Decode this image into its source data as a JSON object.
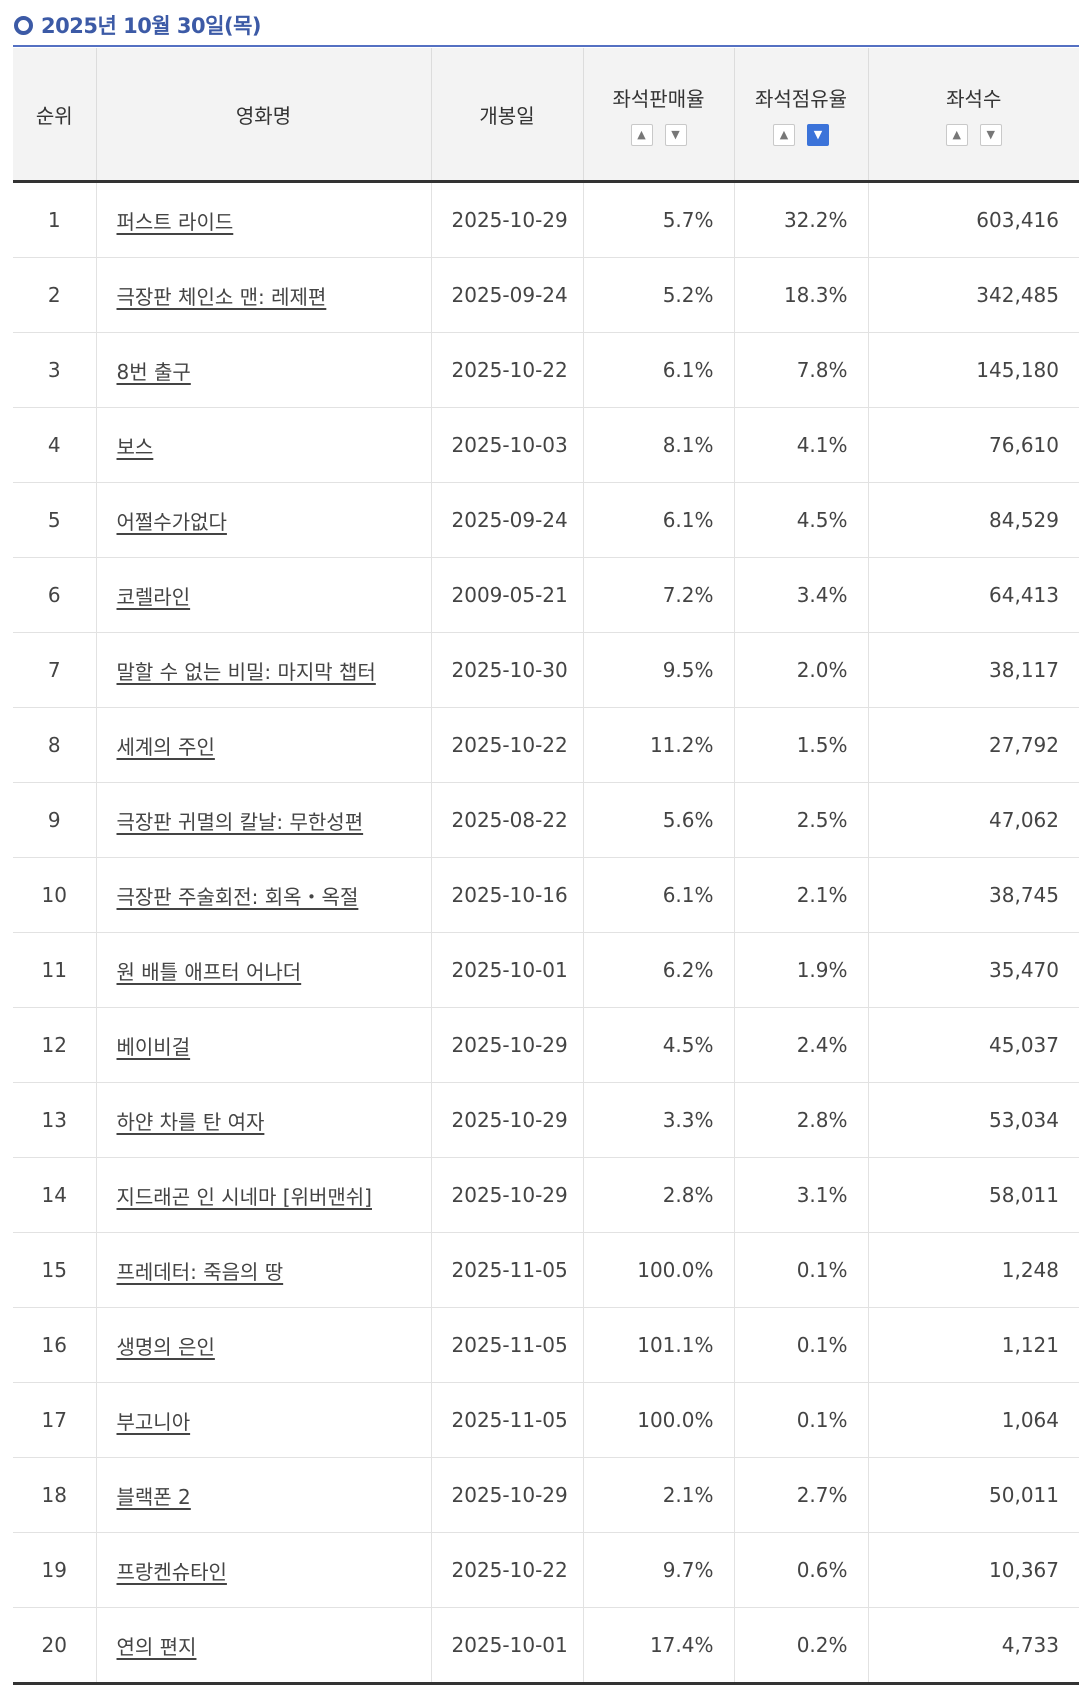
{
  "date_title": "2025년 10월 30일(목)",
  "columns": {
    "rank": "순위",
    "title": "영화명",
    "release": "개봉일",
    "sales_rate": "좌석판매율",
    "share_rate": "좌석점유율",
    "seats": "좌석수"
  },
  "sort": {
    "active_column": "share_rate",
    "active_direction": "desc"
  },
  "rows": [
    {
      "rank": "1",
      "title": "퍼스트 라이드",
      "release": "2025-10-29",
      "sales_rate": "5.7%",
      "share_rate": "32.2%",
      "seats": "603,416"
    },
    {
      "rank": "2",
      "title": "극장판 체인소 맨: 레제편",
      "release": "2025-09-24",
      "sales_rate": "5.2%",
      "share_rate": "18.3%",
      "seats": "342,485"
    },
    {
      "rank": "3",
      "title": "8번 출구",
      "release": "2025-10-22",
      "sales_rate": "6.1%",
      "share_rate": "7.8%",
      "seats": "145,180"
    },
    {
      "rank": "4",
      "title": "보스",
      "release": "2025-10-03",
      "sales_rate": "8.1%",
      "share_rate": "4.1%",
      "seats": "76,610"
    },
    {
      "rank": "5",
      "title": "어쩔수가없다",
      "release": "2025-09-24",
      "sales_rate": "6.1%",
      "share_rate": "4.5%",
      "seats": "84,529"
    },
    {
      "rank": "6",
      "title": "코렐라인",
      "release": "2009-05-21",
      "sales_rate": "7.2%",
      "share_rate": "3.4%",
      "seats": "64,413"
    },
    {
      "rank": "7",
      "title": "말할 수 없는 비밀: 마지막 챕터",
      "release": "2025-10-30",
      "sales_rate": "9.5%",
      "share_rate": "2.0%",
      "seats": "38,117"
    },
    {
      "rank": "8",
      "title": "세계의 주인",
      "release": "2025-10-22",
      "sales_rate": "11.2%",
      "share_rate": "1.5%",
      "seats": "27,792"
    },
    {
      "rank": "9",
      "title": "극장판 귀멸의 칼날: 무한성편",
      "release": "2025-08-22",
      "sales_rate": "5.6%",
      "share_rate": "2.5%",
      "seats": "47,062"
    },
    {
      "rank": "10",
      "title": "극장판 주술회전: 회옥・옥절",
      "release": "2025-10-16",
      "sales_rate": "6.1%",
      "share_rate": "2.1%",
      "seats": "38,745"
    },
    {
      "rank": "11",
      "title": "원 배틀 애프터 어나더",
      "release": "2025-10-01",
      "sales_rate": "6.2%",
      "share_rate": "1.9%",
      "seats": "35,470"
    },
    {
      "rank": "12",
      "title": "베이비걸",
      "release": "2025-10-29",
      "sales_rate": "4.5%",
      "share_rate": "2.4%",
      "seats": "45,037"
    },
    {
      "rank": "13",
      "title": "하얀 차를 탄 여자",
      "release": "2025-10-29",
      "sales_rate": "3.3%",
      "share_rate": "2.8%",
      "seats": "53,034"
    },
    {
      "rank": "14",
      "title": "지드래곤 인 시네마 [위버맨쉬]",
      "release": "2025-10-29",
      "sales_rate": "2.8%",
      "share_rate": "3.1%",
      "seats": "58,011"
    },
    {
      "rank": "15",
      "title": "프레데터: 죽음의 땅",
      "release": "2025-11-05",
      "sales_rate": "100.0%",
      "share_rate": "0.1%",
      "seats": "1,248"
    },
    {
      "rank": "16",
      "title": "생명의 은인",
      "release": "2025-11-05",
      "sales_rate": "101.1%",
      "share_rate": "0.1%",
      "seats": "1,121"
    },
    {
      "rank": "17",
      "title": "부고니아",
      "release": "2025-11-05",
      "sales_rate": "100.0%",
      "share_rate": "0.1%",
      "seats": "1,064"
    },
    {
      "rank": "18",
      "title": "블랙폰 2",
      "release": "2025-10-29",
      "sales_rate": "2.1%",
      "share_rate": "2.7%",
      "seats": "50,011"
    },
    {
      "rank": "19",
      "title": "프랑켄슈타인",
      "release": "2025-10-22",
      "sales_rate": "9.7%",
      "share_rate": "0.6%",
      "seats": "10,367"
    },
    {
      "rank": "20",
      "title": "연의 편지",
      "release": "2025-10-01",
      "sales_rate": "17.4%",
      "share_rate": "0.2%",
      "seats": "4,733"
    }
  ]
}
